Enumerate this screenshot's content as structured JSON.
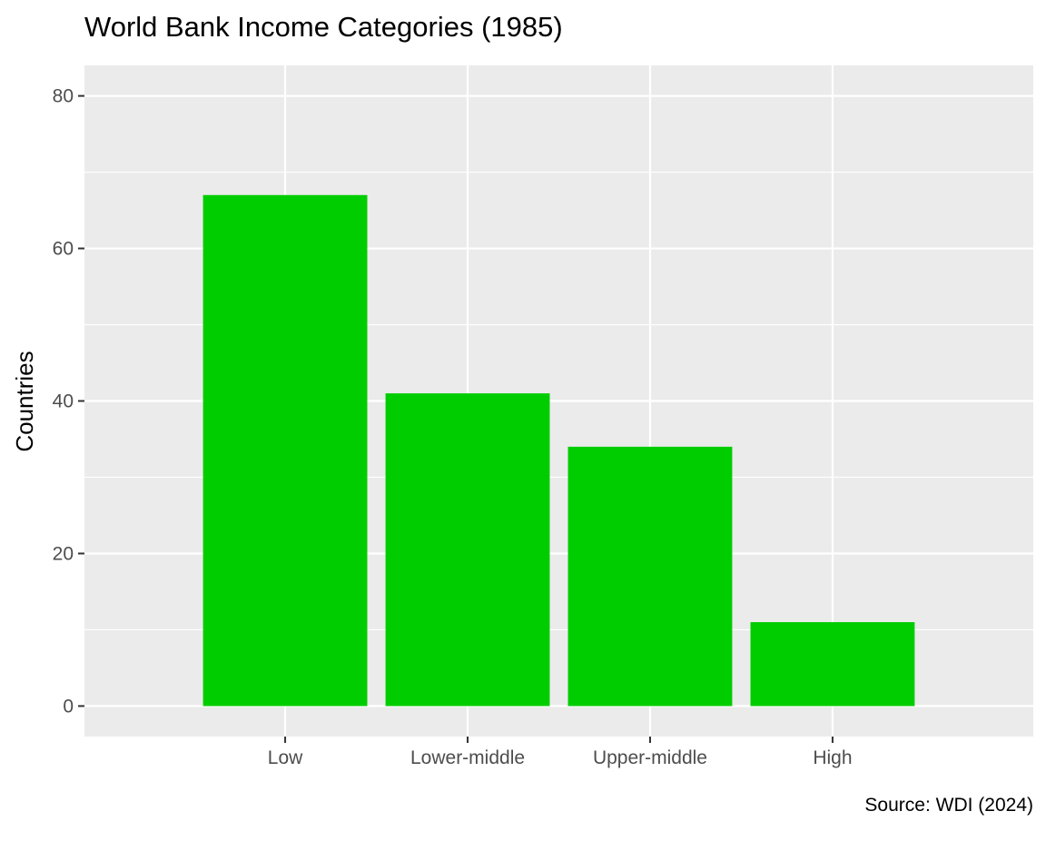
{
  "chart_data": {
    "type": "bar",
    "title": "World Bank Income Categories (1985)",
    "xlabel": "",
    "ylabel": "Countries",
    "caption": "Source: WDI (2024)",
    "categories": [
      "Low",
      "Lower-middle",
      "Upper-middle",
      "High"
    ],
    "values": [
      67,
      41,
      34,
      11
    ],
    "ylim": [
      -4,
      84
    ],
    "y_ticks": [
      0,
      20,
      40,
      60,
      80
    ],
    "y_tick_labels": [
      "0",
      "20",
      "40",
      "60",
      "80"
    ],
    "y_minor_ticks": [
      10,
      30,
      50,
      70
    ],
    "grid": true,
    "legend": "none",
    "colors": {
      "bar": "#00CD00",
      "panel_background": "#EBEBEB",
      "grid_line": "#FFFFFF",
      "tick_text": "#4D4D4D",
      "axis_tick": "#333333"
    }
  }
}
